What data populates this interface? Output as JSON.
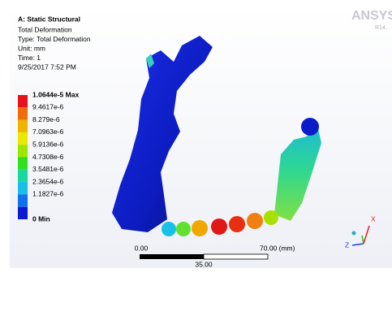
{
  "header": {
    "title": "A: Static Structural",
    "lines": [
      "Total Deformation",
      "Type: Total Deformation",
      "Unit: mm",
      "Time: 1",
      "9/25/2017 7:52 PM"
    ]
  },
  "logo": {
    "brand": "ANSYS",
    "version": "R14."
  },
  "legend": {
    "items": [
      {
        "label": "1.0644e-5 Max",
        "color": "#e8101a"
      },
      {
        "label": "9.4617e-6",
        "color": "#f06c0a"
      },
      {
        "label": "8.279e-6",
        "color": "#f0b400"
      },
      {
        "label": "7.0963e-6",
        "color": "#e8e800"
      },
      {
        "label": "5.9136e-6",
        "color": "#9ee600"
      },
      {
        "label": "4.7308e-6",
        "color": "#30e020"
      },
      {
        "label": "3.5481e-6",
        "color": "#18d8a0"
      },
      {
        "label": "2.3654e-6",
        "color": "#18c0e8"
      },
      {
        "label": "1.1827e-6",
        "color": "#1070f0"
      },
      {
        "label": "0 Min",
        "color": "#0a1ad0"
      }
    ]
  },
  "scale_bar": {
    "left": "0.00",
    "right": "70.00 (mm)",
    "middle": "35.00"
  },
  "triad": {
    "x": "X",
    "z": "Z"
  }
}
